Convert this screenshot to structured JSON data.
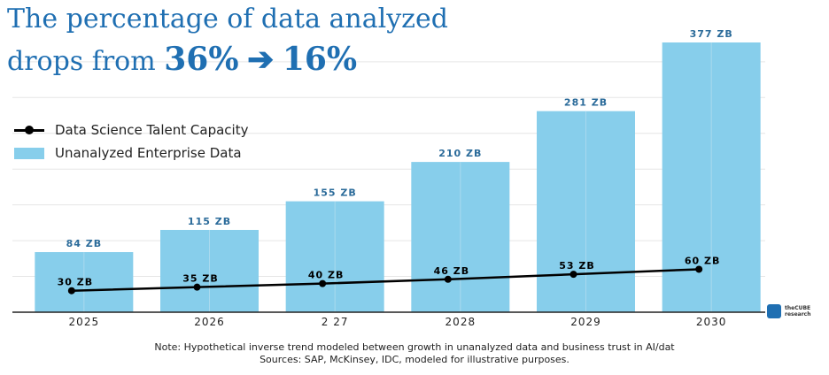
{
  "title": {
    "line1": "The percentage of data analyzed",
    "line2_prefix": "drops from ",
    "from_value": "36%",
    "arrow": "➔",
    "to_value": "16%"
  },
  "legend": {
    "line_label": "Data Science Talent Capacity",
    "bar_label": "Unanalyzed Enterprise Data"
  },
  "notes": {
    "line1": "Note: Hypothetical inverse trend modeled between growth in unanalyzed data and business trust in AI/dat",
    "line2": "Sources: SAP, McKinsey, IDC, modeled for illustrative purposes."
  },
  "logo": {
    "line1": "theCUBE",
    "line2": "research"
  },
  "colors": {
    "bar": "#87ceeb",
    "bar_label": "#2b6b9a",
    "line": "#000000",
    "title": "#1f6fb2"
  },
  "chart_data": {
    "type": "bar",
    "categories": [
      "2025",
      "2026",
      "2  27",
      "2028",
      "2029",
      "2030"
    ],
    "ylim": [
      0,
      380
    ],
    "grid": true,
    "legend_position": "left",
    "series": [
      {
        "name": "Unanalyzed Enterprise Data",
        "type": "bar",
        "values": [
          84,
          115,
          155,
          210,
          281,
          377
        ],
        "labels": [
          "84 ZB",
          "115 ZB",
          "155 ZB",
          "210 ZB",
          "281 ZB",
          "377 ZB"
        ]
      },
      {
        "name": "Data Science Talent Capacity",
        "type": "line",
        "values": [
          30,
          35,
          40,
          46,
          53,
          60
        ],
        "labels": [
          "30 ZB",
          "35 ZB",
          "40 ZB",
          "46 ZB",
          "53 ZB",
          "60 ZB"
        ]
      }
    ]
  }
}
